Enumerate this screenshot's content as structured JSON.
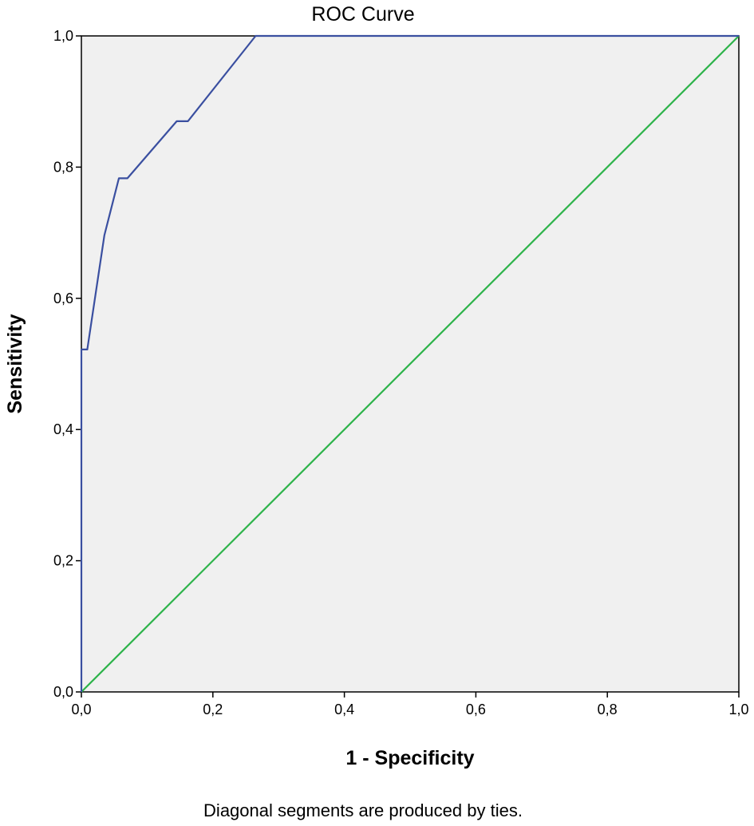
{
  "chart_data": {
    "type": "line",
    "title": "ROC Curve",
    "xlabel": "1 - Specificity",
    "ylabel": "Sensitivity",
    "footnote": "Diagonal segments are produced by ties.",
    "xlim": [
      0,
      1
    ],
    "ylim": [
      0,
      1
    ],
    "x_ticks": [
      "0,0",
      "0,2",
      "0,4",
      "0,6",
      "0,8",
      "1,0"
    ],
    "y_ticks": [
      "0,0",
      "0,2",
      "0,4",
      "0,6",
      "0,8",
      "1,0"
    ],
    "grid": false,
    "plot_background": "#f0f0f0",
    "series": [
      {
        "color": "#3a4fa0",
        "points": [
          [
            0.0,
            0.0
          ],
          [
            0.0,
            0.522
          ],
          [
            0.009,
            0.522
          ],
          [
            0.035,
            0.696
          ],
          [
            0.057,
            0.783
          ],
          [
            0.07,
            0.783
          ],
          [
            0.145,
            0.87
          ],
          [
            0.162,
            0.87
          ],
          [
            0.265,
            1.0
          ],
          [
            1.0,
            1.0
          ]
        ]
      },
      {
        "color": "#2db34a",
        "points": [
          [
            0.0,
            0.0
          ],
          [
            1.0,
            1.0
          ]
        ]
      }
    ]
  }
}
